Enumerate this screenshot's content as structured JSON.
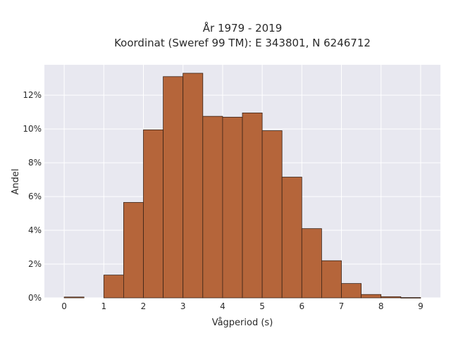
{
  "chart_data": {
    "type": "bar",
    "title_line1": "År 1979 - 2019",
    "title_line2": "Koordinat (Sweref 99 TM): E 343801, N 6246712",
    "xlabel": "Vågperiod (s)",
    "ylabel": "Andel",
    "xlim": [
      -0.5,
      9.5
    ],
    "ylim": [
      0,
      13.8
    ],
    "xticks": [
      {
        "value": 0,
        "label": "0"
      },
      {
        "value": 1,
        "label": "1"
      },
      {
        "value": 2,
        "label": "2"
      },
      {
        "value": 3,
        "label": "3"
      },
      {
        "value": 4,
        "label": "4"
      },
      {
        "value": 5,
        "label": "5"
      },
      {
        "value": 6,
        "label": "6"
      },
      {
        "value": 7,
        "label": "7"
      },
      {
        "value": 8,
        "label": "8"
      },
      {
        "value": 9,
        "label": "9"
      }
    ],
    "yticks": [
      {
        "value": 0,
        "label": "0%"
      },
      {
        "value": 2,
        "label": "2%"
      },
      {
        "value": 4,
        "label": "4%"
      },
      {
        "value": 6,
        "label": "6%"
      },
      {
        "value": 8,
        "label": "8%"
      },
      {
        "value": 10,
        "label": "10%"
      },
      {
        "value": 12,
        "label": "12%"
      }
    ],
    "bin_width": 0.5,
    "bins": [
      {
        "start": 0.0,
        "value": 0.05
      },
      {
        "start": 0.5,
        "value": 0.0
      },
      {
        "start": 1.0,
        "value": 1.35
      },
      {
        "start": 1.5,
        "value": 5.65
      },
      {
        "start": 2.0,
        "value": 9.95
      },
      {
        "start": 2.5,
        "value": 13.1
      },
      {
        "start": 3.0,
        "value": 13.3
      },
      {
        "start": 3.5,
        "value": 10.75
      },
      {
        "start": 4.0,
        "value": 10.7
      },
      {
        "start": 4.5,
        "value": 10.95
      },
      {
        "start": 5.0,
        "value": 9.9
      },
      {
        "start": 5.5,
        "value": 7.15
      },
      {
        "start": 6.0,
        "value": 4.1
      },
      {
        "start": 6.5,
        "value": 2.2
      },
      {
        "start": 7.0,
        "value": 0.85
      },
      {
        "start": 7.5,
        "value": 0.2
      },
      {
        "start": 8.0,
        "value": 0.07
      },
      {
        "start": 8.5,
        "value": 0.02
      }
    ],
    "grid": true,
    "legend": "none",
    "colors": {
      "bar_fill": "#b5653a",
      "bar_edge": "#3a2418",
      "plot_background": "#e8e8f0",
      "grid": "#ffffff"
    }
  }
}
